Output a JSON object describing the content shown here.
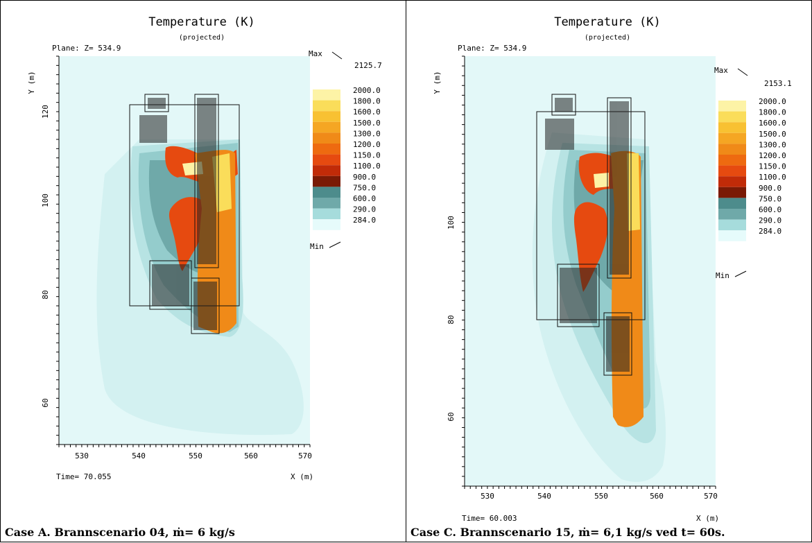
{
  "colors": {
    "background": "#dff7f6",
    "palette": [
      "#e6fbfb",
      "#c8efef",
      "#a6dcdc",
      "#8cc7c7",
      "#6fa9a9",
      "#4d8c8c",
      "#7a1a05",
      "#c12b08",
      "#e64a10",
      "#ee6a10",
      "#f08a18",
      "#f5a623",
      "#f8c132",
      "#fadd5a",
      "#fdf3a6"
    ]
  },
  "panels": [
    {
      "title": "Temperature (K)",
      "subtitle": "(projected)",
      "plane": "Plane: Z= 534.9",
      "ylabel": "Y (m)",
      "xlabel": "X (m)",
      "time": "Time=  70.055",
      "caption": "Case A. Brannscenario 04, ṁ= 6 kg/s",
      "legend": {
        "max_label": "Max",
        "min_label": "Min",
        "max_value": "2125.7",
        "levels": [
          "2000.0",
          "1800.0",
          "1600.0",
          "1500.0",
          "1300.0",
          "1200.0",
          "1150.0",
          "1100.0",
          "900.0",
          "750.0",
          "600.0",
          "290.0",
          "284.0"
        ]
      }
    },
    {
      "title": "Temperature (K)",
      "subtitle": "(projected)",
      "plane": "Plane: Z= 534.9",
      "ylabel": "Y (m)",
      "xlabel": "X (m)",
      "time": "Time=  60.003",
      "caption": "Case C. Brannscenario 15, ṁ= 6,1 kg/s ved t= 60s.",
      "legend": {
        "max_label": "Max",
        "min_label": "Min",
        "max_value": "2153.1",
        "levels": [
          "2000.0",
          "1800.0",
          "1600.0",
          "1500.0",
          "1300.0",
          "1200.0",
          "1150.0",
          "1100.0",
          "900.0",
          "750.0",
          "600.0",
          "290.0",
          "284.0"
        ]
      }
    }
  ],
  "chart_data": [
    {
      "type": "heatmap",
      "title": "Temperature (K)",
      "subtitle": "(projected)",
      "xlabel": "X (m)",
      "ylabel": "Y (m)",
      "xlim": [
        523,
        572
      ],
      "ylim": [
        45,
        130
      ],
      "x_ticks": [
        530,
        540,
        550,
        560,
        570
      ],
      "y_ticks": [
        60,
        80,
        100,
        120
      ],
      "colorbar_levels_K": [
        2000,
        1800,
        1600,
        1500,
        1300,
        1200,
        1150,
        1100,
        900,
        750,
        600,
        290,
        284
      ],
      "max_K": 2125.7,
      "time_s": 70.055
    },
    {
      "type": "heatmap",
      "title": "Temperature (K)",
      "subtitle": "(projected)",
      "xlabel": "X (m)",
      "ylabel": "Y (m)",
      "xlim": [
        523,
        572
      ],
      "ylim": [
        45,
        130
      ],
      "x_ticks": [
        530,
        540,
        550,
        560,
        570
      ],
      "y_ticks": [
        60,
        80,
        100
      ],
      "colorbar_levels_K": [
        2000,
        1800,
        1600,
        1500,
        1300,
        1200,
        1150,
        1100,
        900,
        750,
        600,
        290,
        284
      ],
      "max_K": 2153.1,
      "time_s": 60.003
    }
  ]
}
